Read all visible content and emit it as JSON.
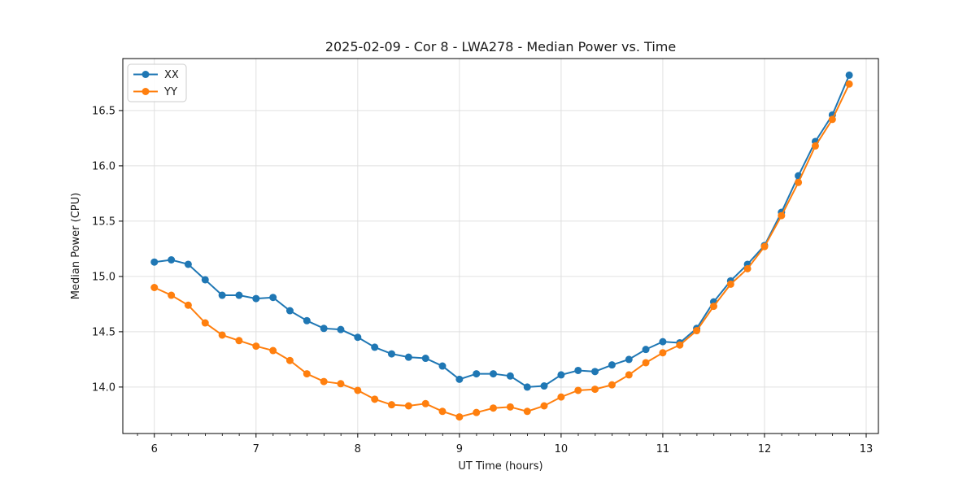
{
  "figure": {
    "title": "2025-02-09 - Cor 8 - LWA278 - Median Power vs. Time"
  },
  "chart_data": {
    "type": "line",
    "title": "2025-02-09 - Cor 8 - LWA278 - Median Power vs. Time",
    "xlabel": "UT Time (hours)",
    "ylabel": "Median Power (CPU)",
    "xlim": [
      5.69,
      13.12
    ],
    "ylim": [
      13.58,
      16.97
    ],
    "xticks": [
      6,
      7,
      8,
      9,
      10,
      11,
      12,
      13
    ],
    "yticks": [
      14.0,
      14.5,
      15.0,
      15.5,
      16.0,
      16.5
    ],
    "x_minor_step": 0.1667,
    "grid": true,
    "grid_color": "#e0e0e0",
    "legend_position": "upper-left",
    "x": [
      6.0,
      6.167,
      6.333,
      6.5,
      6.667,
      6.833,
      7.0,
      7.167,
      7.333,
      7.5,
      7.667,
      7.833,
      8.0,
      8.167,
      8.333,
      8.5,
      8.667,
      8.833,
      9.0,
      9.167,
      9.333,
      9.5,
      9.667,
      9.833,
      10.0,
      10.167,
      10.333,
      10.5,
      10.667,
      10.833,
      11.0,
      11.167,
      11.333,
      11.5,
      11.667,
      11.833,
      12.0,
      12.167,
      12.333,
      12.5,
      12.667,
      12.833
    ],
    "series": [
      {
        "name": "XX",
        "color": "#1f77b4",
        "values": [
          15.13,
          15.15,
          15.11,
          14.97,
          14.83,
          14.83,
          14.8,
          14.81,
          14.69,
          14.6,
          14.53,
          14.52,
          14.45,
          14.36,
          14.3,
          14.27,
          14.26,
          14.19,
          14.07,
          14.12,
          14.12,
          14.1,
          14.0,
          14.01,
          14.11,
          14.15,
          14.14,
          14.2,
          14.25,
          14.34,
          14.41,
          14.4,
          14.53,
          14.77,
          14.96,
          15.11,
          15.28,
          15.58,
          15.91,
          16.22,
          16.46,
          16.82
        ]
      },
      {
        "name": "YY",
        "color": "#ff7f0e",
        "values": [
          14.9,
          14.83,
          14.74,
          14.58,
          14.47,
          14.42,
          14.37,
          14.33,
          14.24,
          14.12,
          14.05,
          14.03,
          13.97,
          13.89,
          13.84,
          13.83,
          13.85,
          13.78,
          13.73,
          13.77,
          13.81,
          13.82,
          13.78,
          13.83,
          13.91,
          13.97,
          13.98,
          14.02,
          14.11,
          14.22,
          14.31,
          14.38,
          14.51,
          14.73,
          14.93,
          15.07,
          15.27,
          15.55,
          15.85,
          16.18,
          16.42,
          16.74
        ]
      }
    ]
  }
}
